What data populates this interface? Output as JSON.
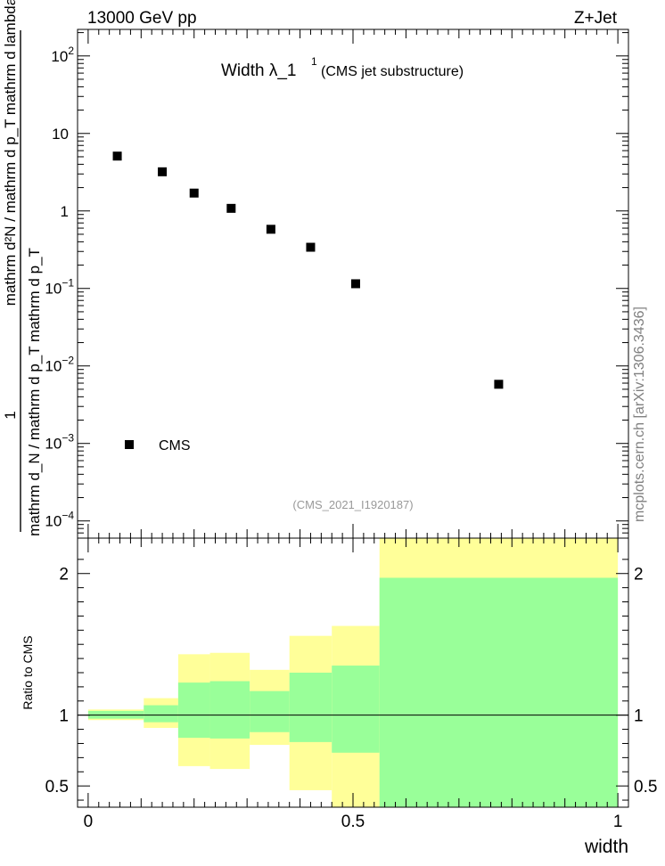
{
  "header": {
    "left": "13000 GeV pp",
    "right": "Z+Jet"
  },
  "title": {
    "main": "Width λ_1",
    "superscript": "1",
    "sub": "(CMS jet substructure)"
  },
  "analysis_id": "(CMS_2021_I1920187)",
  "watermark": "mcplots.cern.ch [arXiv:1306.3436]",
  "ylabel": {
    "numerator": "1",
    "denominator": "mathrm d_N / mathrm d p_T mathrm d p_T",
    "inner": "mathrm d²N / mathrm d p_T mathrm d lambda"
  },
  "ratio_ylabel": "Ratio to CMS",
  "xlabel": "width",
  "legend": {
    "label": "CMS",
    "position": "bottom-left"
  },
  "colors": {
    "marker": "#000000",
    "band_outer": "#ffff99",
    "band_inner": "#99ff99"
  },
  "chart_data": [
    {
      "type": "scatter",
      "panel": "main",
      "ylog": true,
      "xlim": [
        -0.02,
        1.02
      ],
      "ylim": [
        6e-05,
        220
      ],
      "y_ticks": [
        {
          "value": 0.0001,
          "base": "10",
          "exp": "−4"
        },
        {
          "value": 0.001,
          "base": "10",
          "exp": "−3"
        },
        {
          "value": 0.01,
          "base": "10",
          "exp": "−2"
        },
        {
          "value": 0.1,
          "base": "10",
          "exp": "−1"
        },
        {
          "value": 1,
          "base": "1",
          "exp": ""
        },
        {
          "value": 10,
          "base": "10",
          "exp": ""
        },
        {
          "value": 100,
          "base": "10",
          "exp": "2"
        }
      ],
      "series": [
        {
          "name": "CMS",
          "x": [
            0.055,
            0.14,
            0.2,
            0.27,
            0.345,
            0.42,
            0.505,
            0.775
          ],
          "y": [
            5.1,
            3.2,
            1.7,
            1.08,
            0.58,
            0.34,
            0.115,
            0.0058
          ]
        }
      ]
    },
    {
      "type": "area",
      "panel": "ratio",
      "xlim": [
        -0.02,
        1.02
      ],
      "ylim": [
        0.35,
        2.25
      ],
      "x_ticks": [
        {
          "value": 0,
          "label": "0"
        },
        {
          "value": 0.5,
          "label": "0.5"
        },
        {
          "value": 1,
          "label": "1"
        }
      ],
      "y_ticks": [
        {
          "value": 0.5,
          "label": "0.5"
        },
        {
          "value": 1,
          "label": "1"
        },
        {
          "value": 2,
          "label": "2"
        }
      ],
      "reference_line": 1,
      "bins": [
        {
          "x0": 0.0,
          "x1": 0.105,
          "outer": [
            0.965,
            1.04
          ],
          "inner": [
            0.975,
            1.03
          ]
        },
        {
          "x0": 0.105,
          "x1": 0.17,
          "outer": [
            0.91,
            1.12
          ],
          "inner": [
            0.95,
            1.07
          ]
        },
        {
          "x0": 0.17,
          "x1": 0.23,
          "outer": [
            0.64,
            1.43
          ],
          "inner": [
            0.84,
            1.23
          ]
        },
        {
          "x0": 0.23,
          "x1": 0.305,
          "outer": [
            0.62,
            1.44
          ],
          "inner": [
            0.835,
            1.24
          ]
        },
        {
          "x0": 0.305,
          "x1": 0.38,
          "outer": [
            0.79,
            1.32
          ],
          "inner": [
            0.88,
            1.17
          ]
        },
        {
          "x0": 0.38,
          "x1": 0.46,
          "outer": [
            0.47,
            1.56
          ],
          "inner": [
            0.81,
            1.3
          ]
        },
        {
          "x0": 0.46,
          "x1": 0.55,
          "outer": [
            0.35,
            1.63
          ],
          "inner": [
            0.735,
            1.35
          ]
        },
        {
          "x0": 0.55,
          "x1": 1.0,
          "outer": [
            0.35,
            2.25
          ],
          "inner": [
            0.35,
            1.97
          ]
        }
      ]
    }
  ]
}
